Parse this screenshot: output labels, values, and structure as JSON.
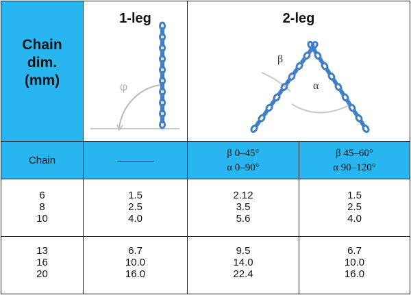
{
  "header": {
    "chain_dim_lines": [
      "Chain",
      "dim.",
      "(mm)"
    ],
    "one_leg": "1-leg",
    "two_leg": "2-leg"
  },
  "diagram_labels": {
    "one_leg_angle_symbol": "φ",
    "two_leg_beta": "β",
    "two_leg_alpha": "α"
  },
  "subheader": {
    "chain": "Chain",
    "one_leg_dash": "————",
    "two_leg_a": [
      "β 0–45°",
      "α 0–90°"
    ],
    "two_leg_b": [
      "β 45–60°",
      "α 90–120°"
    ]
  },
  "groups": [
    {
      "chain": [
        "6",
        "8",
        "10"
      ],
      "one_leg": [
        "1.5",
        "2.5",
        "4.0"
      ],
      "two_leg_a": [
        "2.12",
        "3.5",
        "5.6"
      ],
      "two_leg_b": [
        "1.5",
        "2.5",
        "4.0"
      ]
    },
    {
      "chain": [
        "13",
        "16",
        "20"
      ],
      "one_leg": [
        "6.7",
        "10.0",
        "16.0"
      ],
      "two_leg_a": [
        "9.5",
        "14.0",
        "22.4"
      ],
      "two_leg_b": [
        "6.7",
        "10.0",
        "16.0"
      ]
    }
  ],
  "colors": {
    "accent_blue": "#29b6f0",
    "chain_blue": "#3f7fc6",
    "border": "#222222"
  }
}
